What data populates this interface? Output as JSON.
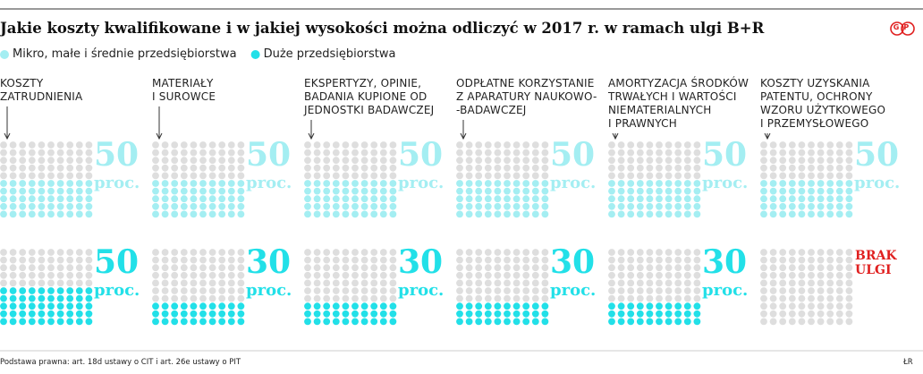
{
  "header": {
    "title": "Jakie koszty kwalifikowane i w jakiej wysokości można odliczyć w 2017 r. w ramach ulgi B+R",
    "logo": "GP"
  },
  "chart_data": {
    "type": "waffle",
    "categories": [
      "KOSZTY\nZATRUDNIENIA",
      "MATERIAŁY\nI SUROWCE",
      "EKSPERTYZY, OPINIE,\nBADANIA KUPIONE OD\nJEDNOSTKI BADAWCZEJ",
      "ODPŁATNE KORZYSTANIE\nZ APARATURY NAUKOWO-\n-BADAWCZEJ",
      "AMORTYZACJA ŚRODKÓW\nTRWAŁYCH I WARTOŚCI\nNIEMATERIALNYCH\nI PRAWNYCH",
      "KOSZTY UZYSKANIA\nPATENTU, OCHRONY\nWZORU UŻYTKOWEGO\nI PRZEMYSŁOWEGO"
    ],
    "unit": "proc.",
    "no_value_label": "BRAK\nULGI",
    "series": [
      {
        "name": "Mikro, małe i średnie przedsiębiorstwa",
        "color": "#a4eef2",
        "values": [
          50,
          50,
          50,
          50,
          50,
          50
        ]
      },
      {
        "name": "Duże przedsiębiorstwa",
        "color": "#22e0e8",
        "values": [
          50,
          30,
          30,
          30,
          30,
          null
        ]
      }
    ]
  },
  "footer": {
    "source": "Podstawa prawna: art. 18d ustawy o CIT i art. 26e ustawy o PIT",
    "credit": "ŁR"
  }
}
